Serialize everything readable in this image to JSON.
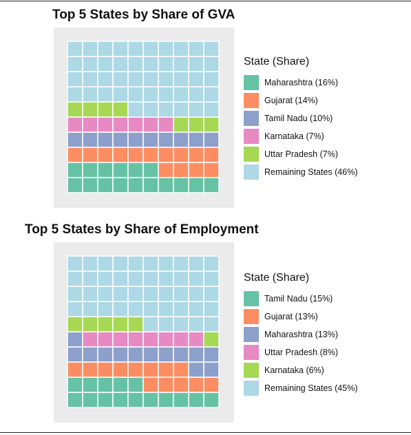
{
  "colors": {
    "teal": "#66c2a5",
    "orange": "#fc8d62",
    "blue": "#8da0cb",
    "pink": "#e78ac3",
    "green": "#a6d854",
    "lightblue": "#add8e6",
    "grid_bg": "#ebebeb"
  },
  "chart_data": [
    {
      "type": "waffle",
      "title": "Top 5 States by Share of GVA",
      "legend_title": "State (Share)",
      "legend_position": "right",
      "grid": {
        "cols": 10,
        "rows": 10
      },
      "series": [
        {
          "name": "Maharashtra",
          "share": 16,
          "label": "Maharashtra (16%)",
          "color_key": "teal"
        },
        {
          "name": "Gujarat",
          "share": 14,
          "label": "Gujarat (14%)",
          "color_key": "orange"
        },
        {
          "name": "Tamil Nadu",
          "share": 10,
          "label": "Tamil Nadu (10%)",
          "color_key": "blue"
        },
        {
          "name": "Karnataka",
          "share": 7,
          "label": "Karnataka (7%)",
          "color_key": "pink"
        },
        {
          "name": "Uttar Pradesh",
          "share": 7,
          "label": "Uttar Pradesh (7%)",
          "color_key": "green"
        },
        {
          "name": "Remaining States",
          "share": 46,
          "label": "Remaining States (46%)",
          "color_key": "lightblue"
        }
      ]
    },
    {
      "type": "waffle",
      "title": "Top 5 States by Share of Employment",
      "legend_title": "State (Share)",
      "legend_position": "right",
      "grid": {
        "cols": 10,
        "rows": 10
      },
      "series": [
        {
          "name": "Tamil Nadu",
          "share": 15,
          "label": "Tamil Nadu (15%)",
          "color_key": "teal"
        },
        {
          "name": "Gujarat",
          "share": 13,
          "label": "Gujarat (13%)",
          "color_key": "orange"
        },
        {
          "name": "Maharashtra",
          "share": 13,
          "label": "Maharashtra (13%)",
          "color_key": "blue"
        },
        {
          "name": "Uttar Pradesh",
          "share": 8,
          "label": "Uttar Pradesh (8%)",
          "color_key": "pink"
        },
        {
          "name": "Karnataka",
          "share": 6,
          "label": "Karnataka (6%)",
          "color_key": "green"
        },
        {
          "name": "Remaining States",
          "share": 45,
          "label": "Remaining States (45%)",
          "color_key": "lightblue"
        }
      ]
    }
  ]
}
